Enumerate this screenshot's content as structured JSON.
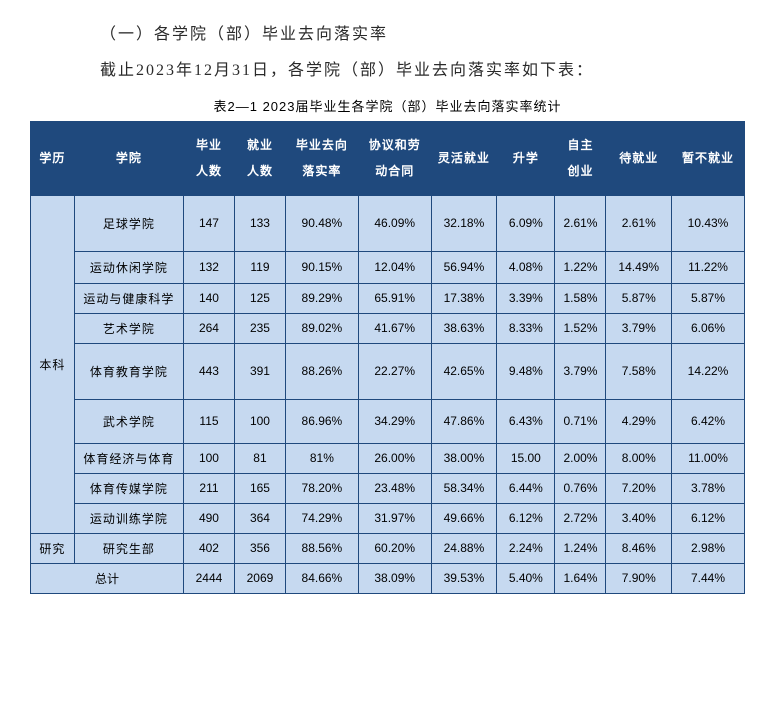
{
  "section_title": "（一）各学院（部）毕业去向落实率",
  "intro_text": "截止2023年12月31日，各学院（部）毕业去向落实率如下表：",
  "table_caption": "表2—1 2023届毕业生各学院（部）毕业去向落实率统计",
  "columns": [
    "学历",
    "学院",
    "毕业\n人数",
    "就业\n人数",
    "毕业去向\n落实率",
    "协议和劳\n动合同",
    "灵活就业",
    "升学",
    "自主\n创业",
    "待就业",
    "暂不就业"
  ],
  "degree_groups": [
    {
      "label": "本科",
      "rowspan": 9
    },
    {
      "label": "研究",
      "rowspan": 1
    }
  ],
  "rows": [
    {
      "college": "足球学院",
      "grad": "147",
      "emp": "133",
      "rate": "90.48%",
      "contract": "46.09%",
      "flex": "32.18%",
      "further": "6.09%",
      "startup": "2.61%",
      "wait": "2.61%",
      "noemp": "10.43%"
    },
    {
      "college": "运动休闲学院",
      "grad": "132",
      "emp": "119",
      "rate": "90.15%",
      "contract": "12.04%",
      "flex": "56.94%",
      "further": "4.08%",
      "startup": "1.22%",
      "wait": "14.49%",
      "noemp": "11.22%"
    },
    {
      "college": "运动与健康科学",
      "grad": "140",
      "emp": "125",
      "rate": "89.29%",
      "contract": "65.91%",
      "flex": "17.38%",
      "further": "3.39%",
      "startup": "1.58%",
      "wait": "5.87%",
      "noemp": "5.87%"
    },
    {
      "college": "艺术学院",
      "grad": "264",
      "emp": "235",
      "rate": "89.02%",
      "contract": "41.67%",
      "flex": "38.63%",
      "further": "8.33%",
      "startup": "1.52%",
      "wait": "3.79%",
      "noemp": "6.06%"
    },
    {
      "college": "体育教育学院",
      "grad": "443",
      "emp": "391",
      "rate": "88.26%",
      "contract": "22.27%",
      "flex": "42.65%",
      "further": "9.48%",
      "startup": "3.79%",
      "wait": "7.58%",
      "noemp": "14.22%"
    },
    {
      "college": "武术学院",
      "grad": "115",
      "emp": "100",
      "rate": "86.96%",
      "contract": "34.29%",
      "flex": "47.86%",
      "further": "6.43%",
      "startup": "0.71%",
      "wait": "4.29%",
      "noemp": "6.42%"
    },
    {
      "college": "体育经济与体育",
      "grad": "100",
      "emp": "81",
      "rate": "81%",
      "contract": "26.00%",
      "flex": "38.00%",
      "further": "15.00",
      "startup": "2.00%",
      "wait": "8.00%",
      "noemp": "11.00%"
    },
    {
      "college": "体育传媒学院",
      "grad": "211",
      "emp": "165",
      "rate": "78.20%",
      "contract": "23.48%",
      "flex": "58.34%",
      "further": "6.44%",
      "startup": "0.76%",
      "wait": "7.20%",
      "noemp": "3.78%"
    },
    {
      "college": "运动训练学院",
      "grad": "490",
      "emp": "364",
      "rate": "74.29%",
      "contract": "31.97%",
      "flex": "49.66%",
      "further": "6.12%",
      "startup": "2.72%",
      "wait": "3.40%",
      "noemp": "6.12%"
    },
    {
      "college": "研究生部",
      "grad": "402",
      "emp": "356",
      "rate": "88.56%",
      "contract": "60.20%",
      "flex": "24.88%",
      "further": "2.24%",
      "startup": "1.24%",
      "wait": "8.46%",
      "noemp": "2.98%"
    }
  ],
  "total": {
    "label": "总计",
    "grad": "2444",
    "emp": "2069",
    "rate": "84.66%",
    "contract": "38.09%",
    "flex": "39.53%",
    "further": "5.40%",
    "startup": "1.64%",
    "wait": "7.90%",
    "noemp": "7.44%"
  },
  "col_widths_pct": [
    6,
    15,
    7,
    7,
    10,
    10,
    9,
    8,
    7,
    9,
    10
  ],
  "colors": {
    "header_bg": "#1f497d",
    "header_fg": "#ffffff",
    "cell_bg": "#c6d9f0",
    "border": "#1f497d",
    "text": "#000000",
    "page_bg": "#ffffff"
  }
}
